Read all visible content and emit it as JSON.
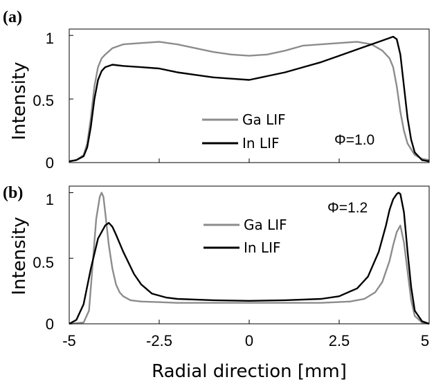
{
  "chart_data": [
    {
      "type": "line",
      "panel_label": "(a)",
      "ylabel": "Intensity",
      "xlabel": "",
      "xlim": [
        -5,
        5
      ],
      "ylim": [
        0,
        1.05
      ],
      "yticks": [
        0,
        0.5,
        1
      ],
      "ytick_labels": [
        "0",
        "0.5",
        "1"
      ],
      "xticks": [
        -5,
        -2.5,
        0,
        2.5,
        5
      ],
      "xtick_labels": [
        "",
        "",
        "",
        "",
        ""
      ],
      "annotation": "Φ=1.0",
      "legend_position": "center-right",
      "series": [
        {
          "name": "Ga LIF",
          "color": "#8c8c8c",
          "x": [
            -5,
            -4.8,
            -4.6,
            -4.5,
            -4.4,
            -4.3,
            -4.2,
            -4.1,
            -4.0,
            -3.8,
            -3.5,
            -3.0,
            -2.5,
            -2.0,
            -1.5,
            -1.0,
            -0.5,
            0,
            0.5,
            1.0,
            1.5,
            2.0,
            2.5,
            3.0,
            3.4,
            3.7,
            3.9,
            4.0,
            4.1,
            4.2,
            4.3,
            4.4,
            4.6,
            4.8,
            5.0
          ],
          "y": [
            0.01,
            0.02,
            0.06,
            0.15,
            0.35,
            0.6,
            0.75,
            0.82,
            0.85,
            0.9,
            0.93,
            0.94,
            0.95,
            0.93,
            0.9,
            0.87,
            0.85,
            0.84,
            0.85,
            0.88,
            0.92,
            0.93,
            0.94,
            0.95,
            0.93,
            0.88,
            0.82,
            0.75,
            0.6,
            0.4,
            0.25,
            0.15,
            0.06,
            0.03,
            0.02
          ]
        },
        {
          "name": "In LIF",
          "color": "#000000",
          "x": [
            -5,
            -4.8,
            -4.6,
            -4.5,
            -4.4,
            -4.3,
            -4.2,
            -4.1,
            -4.0,
            -3.8,
            -3.5,
            -3.0,
            -2.5,
            -2.0,
            -1.5,
            -1.0,
            -0.5,
            0,
            0.5,
            1.0,
            1.5,
            2.0,
            2.5,
            3.0,
            3.5,
            3.8,
            4.0,
            4.1,
            4.2,
            4.3,
            4.4,
            4.5,
            4.6,
            4.8,
            5.0
          ],
          "y": [
            0.01,
            0.02,
            0.05,
            0.12,
            0.28,
            0.5,
            0.65,
            0.72,
            0.75,
            0.77,
            0.76,
            0.75,
            0.74,
            0.71,
            0.69,
            0.67,
            0.66,
            0.65,
            0.68,
            0.71,
            0.75,
            0.79,
            0.84,
            0.89,
            0.94,
            0.97,
            0.99,
            0.97,
            0.85,
            0.6,
            0.35,
            0.18,
            0.08,
            0.02,
            0.01
          ]
        }
      ]
    },
    {
      "type": "line",
      "panel_label": "(b)",
      "ylabel": "Intensity",
      "xlabel": "Radial direction [mm]",
      "xlim": [
        -5,
        5
      ],
      "ylim": [
        0,
        1.05
      ],
      "yticks": [
        0,
        0.5,
        1
      ],
      "ytick_labels": [
        "0",
        "0.5",
        "1"
      ],
      "xticks": [
        -5,
        -2.5,
        0,
        2.5,
        5
      ],
      "xtick_labels": [
        "-5",
        "-2.5",
        "0",
        "2.5",
        "5"
      ],
      "annotation": "Φ=1.2",
      "legend_position": "top-center",
      "series": [
        {
          "name": "Ga LIF",
          "color": "#8c8c8c",
          "x": [
            -5,
            -4.6,
            -4.45,
            -4.35,
            -4.25,
            -4.15,
            -4.1,
            -4.05,
            -4.0,
            -3.9,
            -3.8,
            -3.7,
            -3.6,
            -3.5,
            -3.3,
            -3.0,
            -2.5,
            -2.0,
            -1.0,
            0,
            1.0,
            2.0,
            2.8,
            3.2,
            3.5,
            3.7,
            3.9,
            4.0,
            4.1,
            4.2,
            4.3,
            4.4,
            4.5,
            4.6,
            4.8,
            5.0
          ],
          "y": [
            0.0,
            0.01,
            0.1,
            0.45,
            0.8,
            0.97,
            1.0,
            0.97,
            0.85,
            0.6,
            0.42,
            0.3,
            0.24,
            0.21,
            0.18,
            0.17,
            0.165,
            0.16,
            0.16,
            0.16,
            0.16,
            0.16,
            0.17,
            0.19,
            0.24,
            0.32,
            0.48,
            0.6,
            0.7,
            0.75,
            0.62,
            0.4,
            0.18,
            0.06,
            0.01,
            0.0
          ]
        },
        {
          "name": "In LIF",
          "color": "#000000",
          "x": [
            -5,
            -4.8,
            -4.6,
            -4.4,
            -4.2,
            -4.0,
            -3.9,
            -3.8,
            -3.7,
            -3.5,
            -3.2,
            -3.0,
            -2.7,
            -2.3,
            -2.0,
            -1.0,
            0,
            1.0,
            2.0,
            2.5,
            3.0,
            3.3,
            3.6,
            3.8,
            3.9,
            4.0,
            4.1,
            4.15,
            4.2,
            4.3,
            4.4,
            4.5,
            4.6,
            4.8,
            5.0
          ],
          "y": [
            0.0,
            0.03,
            0.15,
            0.42,
            0.65,
            0.75,
            0.77,
            0.74,
            0.68,
            0.55,
            0.38,
            0.3,
            0.23,
            0.2,
            0.19,
            0.18,
            0.175,
            0.18,
            0.19,
            0.21,
            0.27,
            0.36,
            0.55,
            0.75,
            0.87,
            0.95,
            0.99,
            1.0,
            0.99,
            0.85,
            0.55,
            0.28,
            0.1,
            0.02,
            0.0
          ]
        }
      ]
    }
  ]
}
